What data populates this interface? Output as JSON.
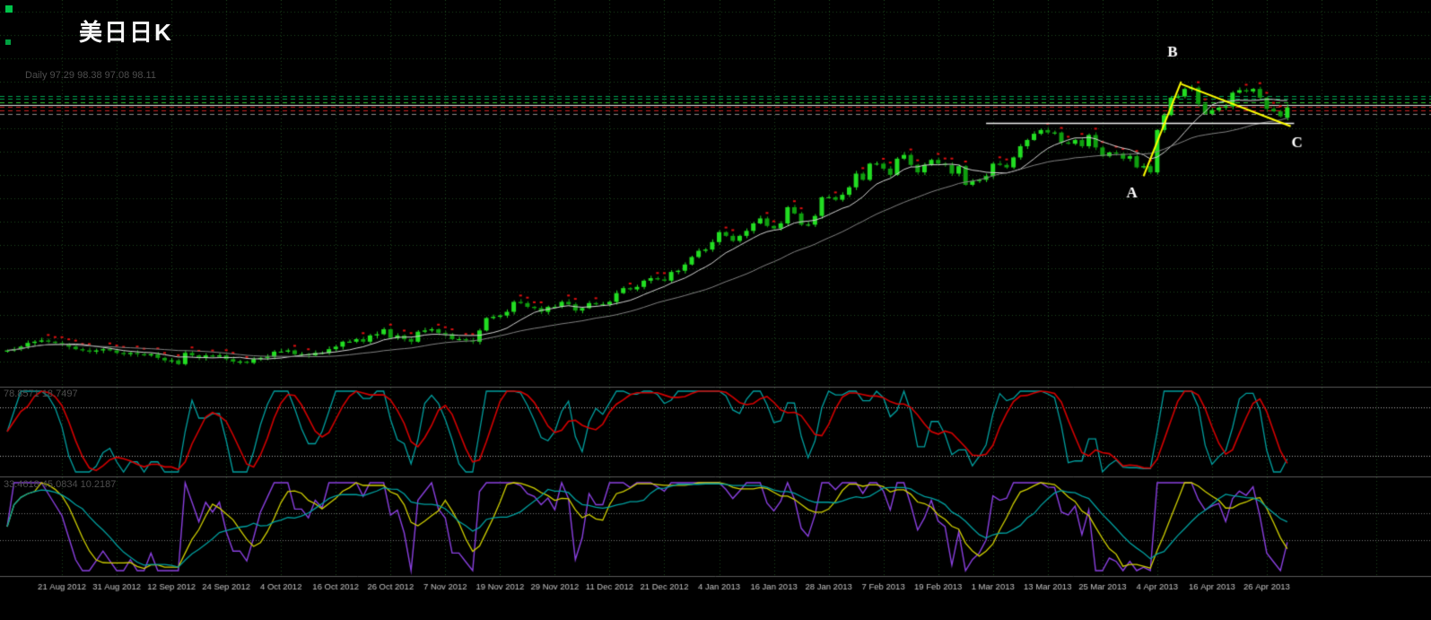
{
  "title": "美日日K",
  "info": {
    "ohlc_line": "Daily  97.29 98.38 97.08 98.11"
  },
  "panels": {
    "stoch": {
      "label": "78.8571 18.7497",
      "levels": [
        80,
        20
      ],
      "k_window": 7,
      "k_smooth": 2,
      "d_smooth": 4,
      "k_color": "#009f9f",
      "d_color": "#d40000"
    },
    "osc": {
      "label": "33.4618 45.0834 10.2187",
      "levels": [
        65,
        35
      ],
      "window": 11,
      "mid_smooth": 5,
      "slow_smooth": 11,
      "colors": [
        "#8a40e0",
        "#cfcf00",
        "#009f9f"
      ]
    }
  },
  "chart_data": {
    "type": "candlestick",
    "symbol_title": "美日日K",
    "timeframe": "Daily",
    "last_ohlc": {
      "open": 97.29,
      "high": 98.38,
      "low": 97.08,
      "close": 98.11
    },
    "price_range": [
      75.9,
      106.6
    ],
    "grid": true,
    "x_tick_labels": [
      "21 Aug 2012",
      "31 Aug 2012",
      "12 Sep 2012",
      "24 Sep 2012",
      "4 Oct 2012",
      "16 Oct 2012",
      "26 Oct 2012",
      "7 Nov 2012",
      "19 Nov 2012",
      "29 Nov 2012",
      "11 Dec 2012",
      "21 Dec 2012",
      "4 Jan 2013",
      "16 Jan 2013",
      "28 Jan 2013",
      "7 Feb 2013",
      "19 Feb 2013",
      "1 Mar 2013",
      "13 Mar 2013",
      "25 Mar 2013",
      "4 Apr 2013",
      "16 Apr 2013",
      "26 Apr 2013"
    ],
    "first_tick_bar": 8,
    "bars_per_tick": 8,
    "closes": [
      78.6,
      78.7,
      78.9,
      79.2,
      79.3,
      79.4,
      79.3,
      79.2,
      79.1,
      78.9,
      78.7,
      78.6,
      78.5,
      78.6,
      78.7,
      78.6,
      78.4,
      78.3,
      78.4,
      78.3,
      78.2,
      78.3,
      78.0,
      77.8,
      77.8,
      77.5,
      78.4,
      78.2,
      78.0,
      78.2,
      78.1,
      78.2,
      77.9,
      77.7,
      77.7,
      77.6,
      77.9,
      78.0,
      78.1,
      78.5,
      78.5,
      78.6,
      78.3,
      78.3,
      78.2,
      78.4,
      78.4,
      78.7,
      78.9,
      79.3,
      79.3,
      79.5,
      79.3,
      79.8,
      79.9,
      80.3,
      79.6,
      79.8,
      79.5,
      79.3,
      80.1,
      80.2,
      80.3,
      80.0,
      79.9,
      79.5,
      79.5,
      79.4,
      79.3,
      80.2,
      81.2,
      81.3,
      81.4,
      81.7,
      82.5,
      82.4,
      82.1,
      82.0,
      81.7,
      82.1,
      82.1,
      82.5,
      82.3,
      81.8,
      82.0,
      82.4,
      82.3,
      82.3,
      82.5,
      83.2,
      83.6,
      83.5,
      83.7,
      84.2,
      84.4,
      84.3,
      84.2,
      84.9,
      85.0,
      85.5,
      86.1,
      86.6,
      86.7,
      87.3,
      88.1,
      87.8,
      87.4,
      87.8,
      88.2,
      88.8,
      89.2,
      88.6,
      88.4,
      88.8,
      90.1,
      89.6,
      88.7,
      88.7,
      89.4,
      90.9,
      90.9,
      90.7,
      91.1,
      91.7,
      92.8,
      92.3,
      93.6,
      93.6,
      93.2,
      92.7,
      94.0,
      94.3,
      93.5,
      92.9,
      93.5,
      93.9,
      93.6,
      93.5,
      92.8,
      93.4,
      91.9,
      92.2,
      92.3,
      92.6,
      93.6,
      93.5,
      93.3,
      94.1,
      95.0,
      95.5,
      96.0,
      96.3,
      96.1,
      96.1,
      95.3,
      95.2,
      95.5,
      95.0,
      95.9,
      94.9,
      94.2,
      94.5,
      94.4,
      94.0,
      94.2,
      93.3,
      93.4,
      92.9,
      96.3,
      97.5,
      98.9,
      99.0,
      99.6,
      99.7,
      98.4,
      97.6,
      97.9,
      98.1,
      98.2,
      99.3,
      99.5,
      99.4,
      99.6,
      98.9,
      98.0,
      97.8,
      97.4,
      98.11
    ],
    "moving_averages": [
      {
        "period": 9,
        "color": "#d2d2d2"
      },
      {
        "period": 27,
        "color": "#828282"
      }
    ],
    "levels": [
      {
        "price": 99.05,
        "color": "#00a550",
        "dash": true
      },
      {
        "price": 98.8,
        "color": "#00a550",
        "dash": true
      },
      {
        "price": 98.55,
        "color": "#33cc33",
        "dash": true
      },
      {
        "price": 98.32,
        "color": "#e0e0e0",
        "dash": false
      },
      {
        "price": 98.15,
        "color": "#cc2222",
        "dash": true
      },
      {
        "price": 97.9,
        "color": "#cc2222",
        "dash": true
      },
      {
        "price": 97.6,
        "color": "#8c8c8c",
        "dash": true
      }
    ],
    "partial_line": {
      "price": 96.85,
      "from_bar": 143,
      "to_bar": 188,
      "color": "#f0f0f0"
    },
    "trendlines": [
      {
        "from": {
          "bar": 166.0,
          "price": 92.6
        },
        "to": {
          "bar": 171.5,
          "price": 100.2
        },
        "color": "#ffff00"
      },
      {
        "from": {
          "bar": 171.5,
          "price": 100.0
        },
        "to": {
          "bar": 187.5,
          "price": 96.6
        },
        "color": "#ffff00"
      }
    ],
    "annotations": [
      {
        "text": "A",
        "bar": 163.5,
        "price": 90.9
      },
      {
        "text": "B",
        "bar": 169.5,
        "price": 102.2
      },
      {
        "text": "C",
        "bar": 187.6,
        "price": 94.9
      }
    ],
    "colors": {
      "background": "#000000",
      "grid": "#1e461e",
      "bull_candle": "#22dd22",
      "bear_candle": "#0f9e0f",
      "marker": "#dd1111",
      "separator": "#5a5a5a",
      "axis_text": "#c4c4c4",
      "annotation_text": "#ffffff"
    }
  }
}
